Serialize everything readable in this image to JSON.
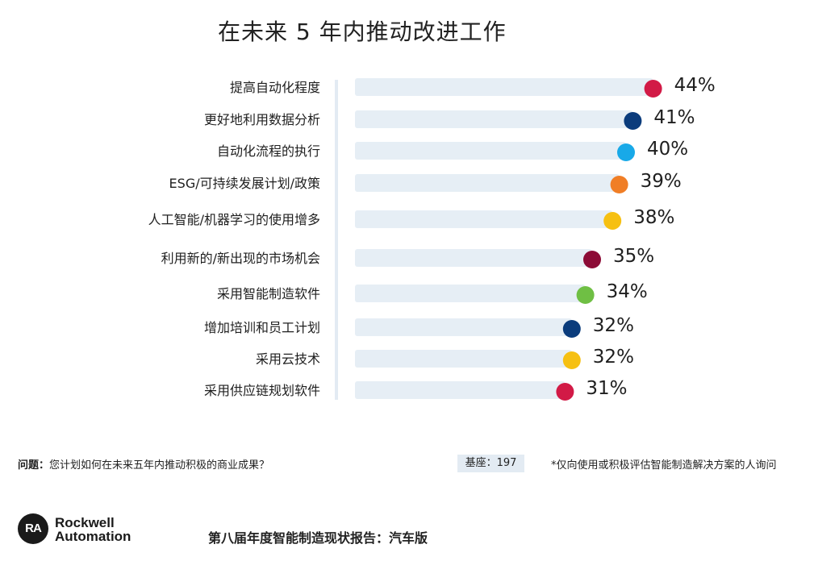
{
  "chart_data": {
    "type": "bar",
    "title": "在未来 5 年内推动改进工作",
    "categories": [
      "提高自动化程度",
      "更好地利用数据分析",
      "自动化流程的执行",
      "ESG/可持续发展计划/政策",
      "人工智能/机器学习的使用增多",
      "利用新的/新出现的市场机会",
      "采用智能制造软件",
      "增加培训和员工计划",
      "采用云技术",
      "采用供应链规划软件"
    ],
    "values": [
      44,
      41,
      40,
      39,
      38,
      35,
      34,
      32,
      32,
      31
    ],
    "value_labels": [
      "44%",
      "41%",
      "40%",
      "39%",
      "38%",
      "35%",
      "34%",
      "32%",
      "32%",
      "31%"
    ],
    "dot_colors": [
      "#d21a46",
      "#0b3c7c",
      "#18a9e8",
      "#f07e26",
      "#f6c012",
      "#8c0b36",
      "#6fbf44",
      "#0b3c7c",
      "#f6c012",
      "#d21a46"
    ],
    "track_color": "#e6eef5",
    "xlim": [
      0,
      100
    ],
    "xlabel": "",
    "ylabel": "",
    "grid": false,
    "legend": "none"
  },
  "footer": {
    "question_label": "问题：",
    "question_text": "您计划如何在未来五年内推动积极的商业成果？",
    "base": "基座：197",
    "footnote": "*仅向使用或积极评估智能制造解决方案的人询问"
  },
  "brand": {
    "logo_mark": "RA",
    "logo_line1": "Rockwell",
    "logo_line2": "Automation",
    "report_title": "第八届年度智能制造现状报告：汽车版"
  }
}
